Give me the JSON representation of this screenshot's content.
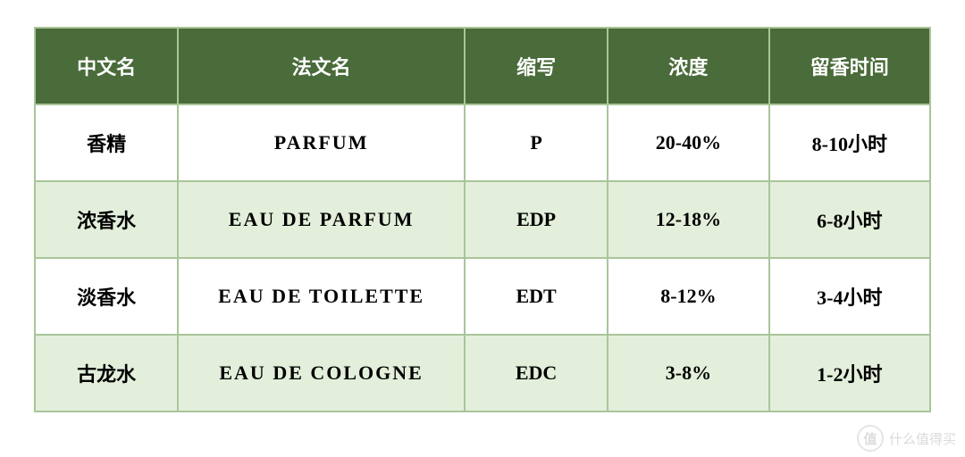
{
  "table": {
    "type": "table",
    "header_bg": "#4a6b3a",
    "header_fg": "#ffffff",
    "border_color": "#a9c59a",
    "row_bg_odd": "#ffffff",
    "row_bg_even": "#e3efdb",
    "cell_fg": "#000000",
    "header_fontsize": 22,
    "cell_fontsize": 22,
    "col_widths_pct": [
      16,
      32,
      16,
      18,
      18
    ],
    "columns": [
      "中文名",
      "法文名",
      "缩写",
      "浓度",
      "留香时间"
    ],
    "rows": [
      [
        "香精",
        "PARFUM",
        "P",
        "20-40%",
        "8-10小时"
      ],
      [
        "浓香水",
        "EAU DE PARFUM",
        "EDP",
        "12-18%",
        "6-8小时"
      ],
      [
        "淡香水",
        "EAU DE TOILETTE",
        "EDT",
        "8-12%",
        "3-4小时"
      ],
      [
        "古龙水",
        "EAU DE COLOGNE",
        "EDC",
        "3-8%",
        "1-2小时"
      ]
    ]
  },
  "watermark": {
    "badge_text": "值",
    "text": "什么值得买"
  }
}
